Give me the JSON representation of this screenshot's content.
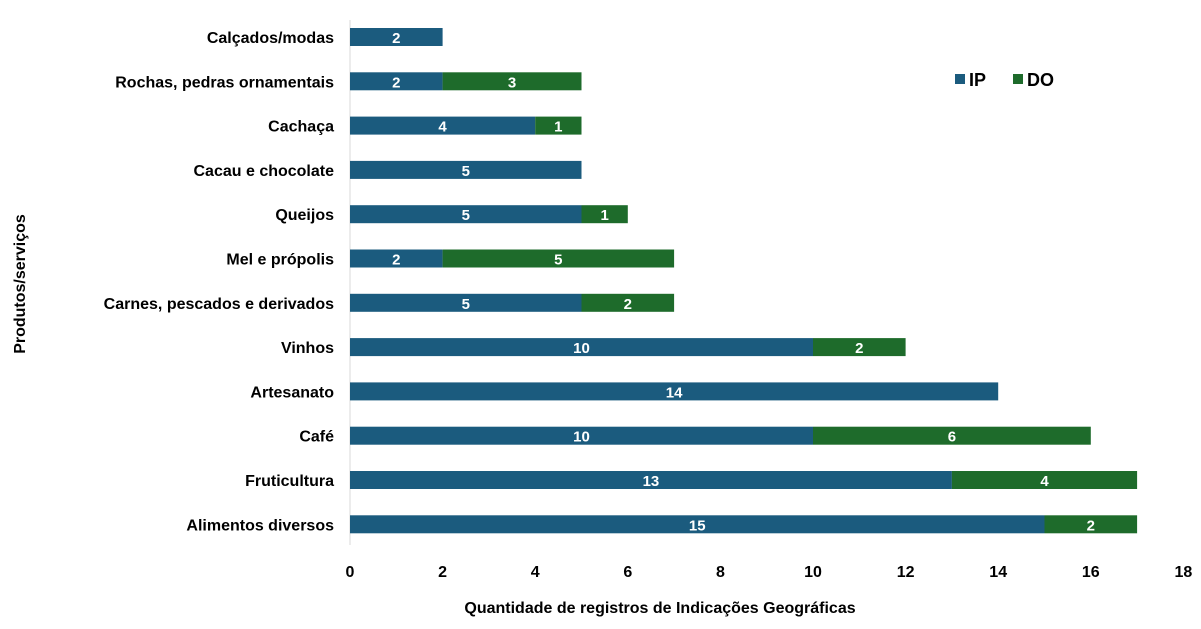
{
  "chart_data": {
    "type": "bar",
    "orientation": "horizontal",
    "stacked": true,
    "categories": [
      "Calçados/modas",
      "Rochas, pedras ornamentais",
      "Cachaça",
      "Cacau e chocolate",
      "Queijos",
      "Mel e própolis",
      "Carnes, pescados e derivados",
      "Vinhos",
      "Artesanato",
      "Café",
      "Fruticultura",
      "Alimentos diversos"
    ],
    "series": [
      {
        "name": "IP",
        "color": "#1B5B7E",
        "values": [
          2,
          2,
          4,
          5,
          5,
          2,
          5,
          10,
          14,
          10,
          13,
          15
        ]
      },
      {
        "name": "DO",
        "color": "#1E6B2B",
        "values": [
          0,
          3,
          1,
          0,
          1,
          5,
          2,
          2,
          0,
          6,
          4,
          2
        ]
      }
    ],
    "title": "",
    "xlabel": "Quantidade de registros de Indicações Geográficas",
    "ylabel": "Produtos/serviços",
    "xlim": [
      0,
      18
    ],
    "xticks": [
      "0",
      "2",
      "4",
      "6",
      "8",
      "10",
      "12",
      "14",
      "16",
      "18"
    ],
    "grid": false,
    "legend_position": "top-right"
  }
}
